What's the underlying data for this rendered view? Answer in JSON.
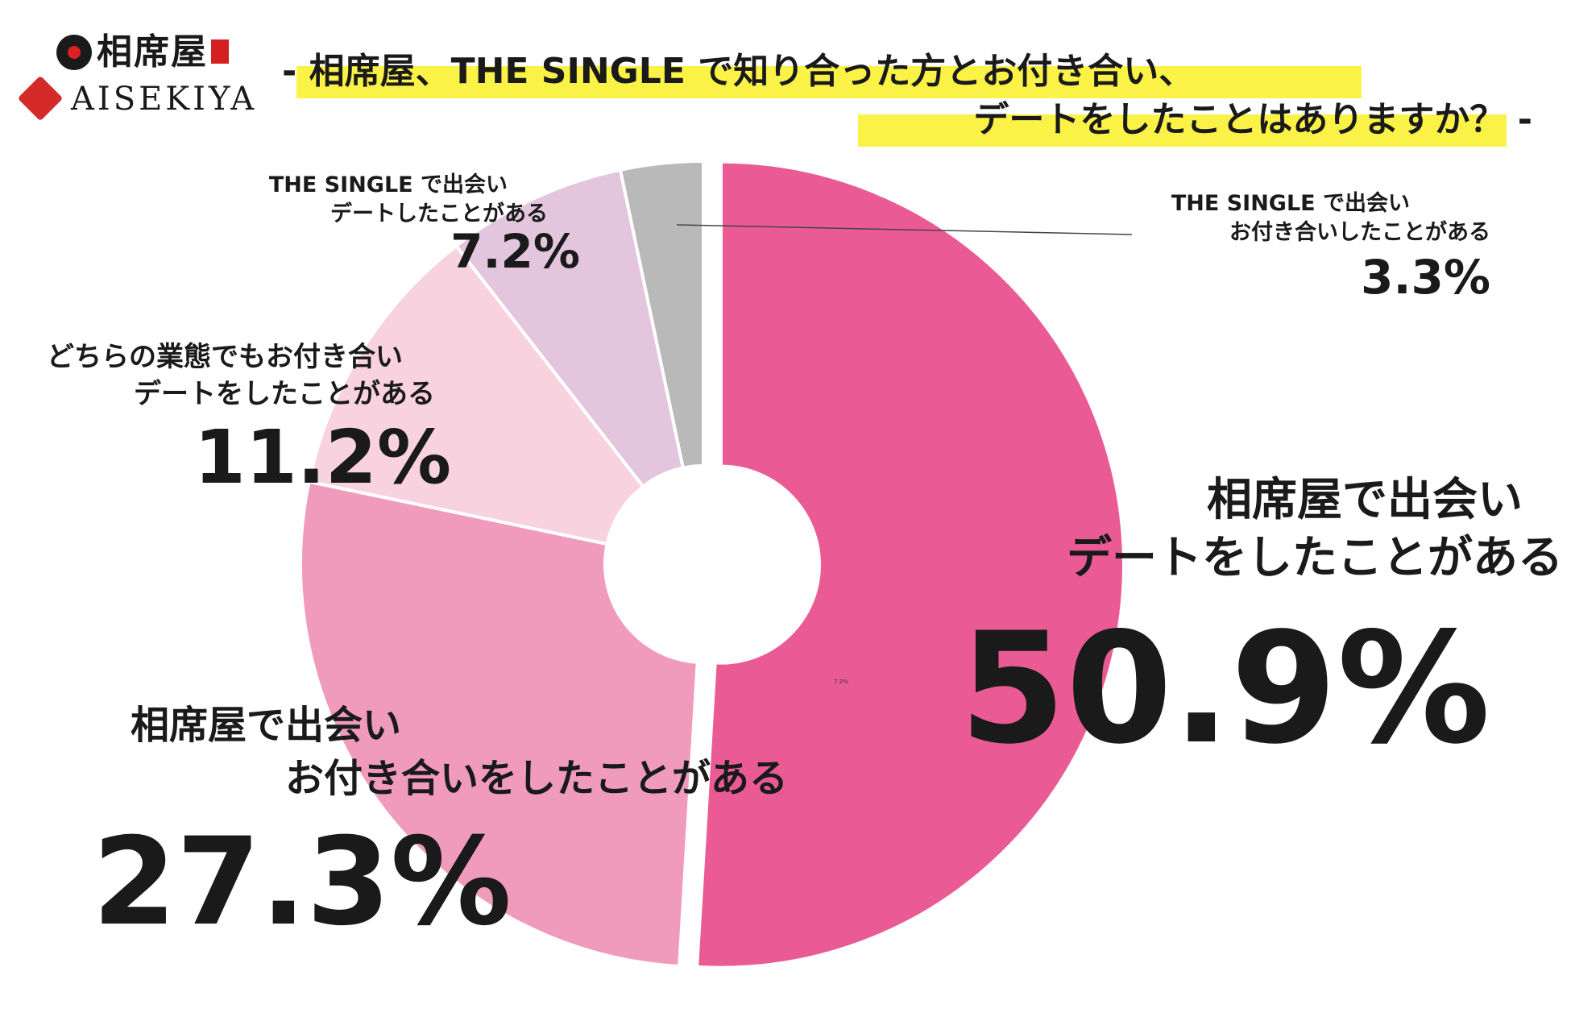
{
  "logo": {
    "jp_text": "相席屋",
    "en_text": "AISEKIYA"
  },
  "title": {
    "line1": "- 相席屋、THE SINGLE で知り合った方とお付き合い、",
    "line2": "デートをしたことはありますか？ -"
  },
  "colors": {
    "highlight": "#fbf248"
  },
  "chart_data": {
    "type": "pie",
    "donut": true,
    "unit": "%",
    "slices": [
      {
        "label_line1": "相席屋で出会い",
        "label_line2": "デートをしたことがある",
        "value": 50.9,
        "value_text": "50.9%",
        "color": "#ea5b95"
      },
      {
        "label_line1": "相席屋で出会い",
        "label_line2": "お付き合いをしたことがある",
        "value": 27.3,
        "value_text": "27.3%",
        "color": "#f09abc"
      },
      {
        "label_line1": "どちらの業態でもお付き合い",
        "label_line2": "デートをしたことがある",
        "value": 11.2,
        "value_text": "11.2%",
        "color": "#f8d2de"
      },
      {
        "label_line1": "THE SINGLE で出会い",
        "label_line2": "デートしたことがある",
        "value": 7.2,
        "value_text": "7.2%",
        "color": "#e3c5de"
      },
      {
        "label_line1": "THE SINGLE で出会い",
        "label_line2": "お付き合いしたことがある",
        "value": 3.3,
        "value_text": "3.3%",
        "color": "#b8b9b8"
      }
    ],
    "stray_label": "7.2%"
  }
}
